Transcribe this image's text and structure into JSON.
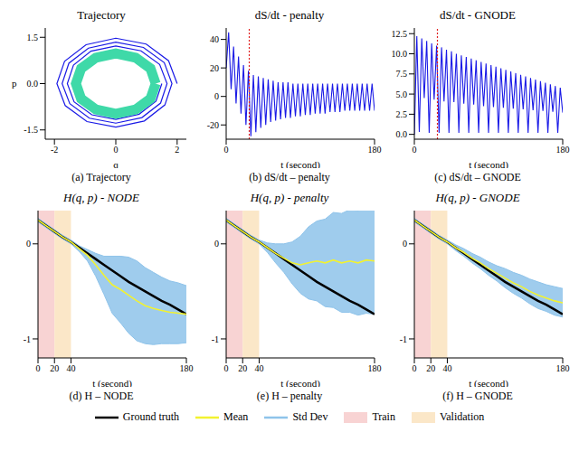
{
  "chart_data": [
    {
      "type": "line",
      "title": "Trajectory",
      "caption": "(a) Trajectory",
      "x_label": "q",
      "y_label": "p",
      "xlim": [
        -2.3,
        2.3
      ],
      "xticks": [
        -2,
        0,
        2
      ],
      "ylim": [
        -1.8,
        1.8
      ],
      "yticks": [
        -1.5,
        {
          "value": 0,
          "label": "0.0"
        },
        1.5
      ],
      "series": [
        {
          "color": "#1a1ae6",
          "x": [
            2.0,
            1.72,
            0.99,
            0.0,
            -0.97,
            -1.67,
            -1.92,
            -1.65,
            -0.94,
            0.0,
            0.93,
            1.6,
            1.83,
            1.58,
            0.9,
            0.0,
            -0.89,
            -1.53,
            -1.75,
            -1.5,
            -0.86,
            0.0,
            0.85,
            1.46,
            1.67,
            1.43,
            0.82,
            0.0,
            -0.81,
            -1.38,
            -1.58,
            -1.36,
            -0.78,
            0.0,
            0.76,
            1.31,
            1.5
          ],
          "y": [
            0.0,
            0.74,
            1.28,
            1.47,
            1.26,
            0.72,
            0.0,
            -0.71,
            -1.23,
            -1.41,
            -1.21,
            -0.69,
            0.0,
            0.68,
            1.17,
            1.34,
            1.15,
            0.66,
            0.0,
            -0.65,
            -1.12,
            -1.28,
            -1.1,
            -0.63,
            0.0,
            0.62,
            1.06,
            1.22,
            1.05,
            0.6,
            0.0,
            -0.59,
            -1.01,
            -1.16,
            -0.99,
            -0.57,
            0.0
          ]
        },
        {
          "color": "#3fd9a8",
          "x": [
            1.3,
            1.13,
            0.65,
            0.0,
            -0.65,
            -1.13,
            -1.3,
            -1.13,
            -0.65,
            0.0,
            0.65,
            1.13,
            1.3
          ],
          "y": [
            0.0,
            0.49,
            0.84,
            0.98,
            0.84,
            0.49,
            0.0,
            -0.49,
            -0.84,
            -0.98,
            -0.84,
            -0.49,
            0.0
          ]
        }
      ]
    },
    {
      "type": "line",
      "title": "dS/dt - penalty",
      "caption": "(b) dS/dt – penalty",
      "x_label": "t (second)",
      "xlim": [
        0,
        180
      ],
      "xticks": [
        0,
        180
      ],
      "ylim": [
        -30,
        48
      ],
      "yticks": [
        -20,
        0,
        20,
        40
      ],
      "vline": 28,
      "x": [
        0,
        3,
        6,
        9,
        12,
        15,
        18,
        21,
        24,
        27,
        30,
        33,
        36,
        39,
        42,
        45,
        48,
        51,
        54,
        57,
        60,
        63,
        66,
        69,
        72,
        75,
        78,
        81,
        84,
        87,
        90,
        93,
        96,
        99,
        102,
        105,
        108,
        111,
        114,
        117,
        120,
        123,
        126,
        129,
        132,
        135,
        138,
        141,
        144,
        147,
        150,
        153,
        156,
        159,
        162,
        165,
        168,
        171,
        174,
        177,
        180
      ],
      "series": [
        {
          "color": "#1a1ae6",
          "values": [
            20,
            45,
            5,
            35,
            -5,
            28,
            -12,
            22,
            -20,
            18,
            -28,
            15,
            -25,
            14,
            -22,
            13,
            -20,
            12,
            -18,
            11,
            -17,
            10,
            -16,
            10,
            -15,
            10,
            -15,
            9,
            -14,
            9,
            -14,
            9,
            -13,
            9,
            -13,
            9,
            -12,
            9,
            -12,
            9,
            -12,
            9,
            -11,
            9,
            -11,
            9,
            -11,
            9,
            -10,
            9,
            -10,
            9,
            -10,
            9,
            -10,
            9,
            -10,
            9,
            -10,
            9,
            -10
          ]
        }
      ]
    },
    {
      "type": "line",
      "title": "dS/dt - GNODE",
      "caption": "(c) dS/dt – GNODE",
      "x_label": "t (second)",
      "xlim": [
        0,
        180
      ],
      "xticks": [
        0,
        180
      ],
      "ylim": [
        -0.6,
        13.2
      ],
      "yticks": [
        {
          "value": 0,
          "label": "0.0"
        },
        2.5,
        {
          "value": 5,
          "label": "5.0"
        },
        7.5,
        {
          "value": 10,
          "label": "10.0"
        },
        12.5
      ],
      "vline": 28,
      "x": [
        0,
        3,
        6,
        9,
        12,
        15,
        18,
        21,
        24,
        27,
        30,
        33,
        36,
        39,
        42,
        45,
        48,
        51,
        54,
        57,
        60,
        63,
        66,
        69,
        72,
        75,
        78,
        81,
        84,
        87,
        90,
        93,
        96,
        99,
        102,
        105,
        108,
        111,
        114,
        117,
        120,
        123,
        126,
        129,
        132,
        135,
        138,
        141,
        144,
        147,
        150,
        153,
        156,
        159,
        162,
        165,
        168,
        171,
        174,
        177,
        180
      ],
      "series": [
        {
          "color": "#1a1ae6",
          "values": [
            0,
            12.2,
            0.3,
            11.9,
            4.5,
            11.6,
            0.2,
            11.3,
            4.3,
            11.0,
            0.2,
            10.8,
            4.1,
            10.5,
            0.2,
            10.3,
            4.0,
            10.0,
            0.2,
            9.8,
            3.8,
            9.6,
            0.2,
            9.4,
            3.7,
            9.2,
            0.2,
            9.0,
            3.5,
            8.8,
            0.2,
            8.6,
            3.4,
            8.4,
            0.2,
            8.2,
            3.3,
            8.0,
            0.2,
            7.8,
            3.2,
            7.6,
            0.2,
            7.4,
            3.1,
            7.2,
            0.2,
            7.0,
            3.0,
            6.8,
            0.2,
            6.6,
            2.9,
            6.4,
            0.2,
            6.2,
            2.8,
            6.0,
            0.2,
            5.8,
            2.7
          ]
        }
      ]
    },
    {
      "type": "line",
      "title": "H(q, p) - NODE",
      "caption": "(d) H – NODE",
      "x_label": "t (second)",
      "legend": "bottom",
      "xlim": [
        0,
        180
      ],
      "xticks": [
        0,
        20,
        40,
        180
      ],
      "ylim": [
        -1.2,
        0.35
      ],
      "yticks": [
        -1,
        0
      ],
      "regions": [
        {
          "name": "Train",
          "from": 0,
          "to": 20,
          "color": "#f8d3d3"
        },
        {
          "name": "Validation",
          "from": 20,
          "to": 40,
          "color": "#fbe7c8"
        }
      ],
      "x": [
        0,
        10,
        20,
        30,
        40,
        50,
        60,
        70,
        80,
        90,
        100,
        110,
        120,
        130,
        140,
        150,
        160,
        170,
        180
      ],
      "series": [
        {
          "name": "Ground truth",
          "color": "#000000",
          "values": [
            0.25,
            0.19,
            0.13,
            0.07,
            0.02,
            -0.04,
            -0.1,
            -0.16,
            -0.22,
            -0.28,
            -0.34,
            -0.4,
            -0.45,
            -0.5,
            -0.55,
            -0.6,
            -0.64,
            -0.69,
            -0.74
          ]
        },
        {
          "name": "Mean",
          "color": "#f2f230",
          "values": [
            0.25,
            0.19,
            0.13,
            0.07,
            0.02,
            -0.05,
            -0.12,
            -0.22,
            -0.33,
            -0.43,
            -0.48,
            -0.54,
            -0.6,
            -0.65,
            -0.68,
            -0.7,
            -0.72,
            -0.73,
            -0.74
          ]
        },
        {
          "name": "Std Dev",
          "color": "#8ec3ea",
          "lower": [
            0.23,
            0.17,
            0.11,
            0.05,
            0.0,
            -0.08,
            -0.18,
            -0.34,
            -0.53,
            -0.73,
            -0.83,
            -0.94,
            -1.02,
            -1.05,
            -1.06,
            -1.05,
            -1.05,
            -1.05,
            -1.04
          ],
          "upper": [
            0.27,
            0.21,
            0.15,
            0.09,
            0.04,
            -0.02,
            -0.06,
            -0.1,
            -0.13,
            -0.13,
            -0.13,
            -0.14,
            -0.18,
            -0.25,
            -0.3,
            -0.35,
            -0.39,
            -0.41,
            -0.44
          ]
        }
      ]
    },
    {
      "type": "line",
      "title": "H(q, p) - penalty",
      "caption": "(e) H – penalty",
      "x_label": "t (second)",
      "xlim": [
        0,
        180
      ],
      "xticks": [
        0,
        20,
        40,
        180
      ],
      "ylim": [
        -1.2,
        0.35
      ],
      "yticks": [
        -1,
        0
      ],
      "regions": [
        {
          "name": "Train",
          "from": 0,
          "to": 20,
          "color": "#f8d3d3"
        },
        {
          "name": "Validation",
          "from": 20,
          "to": 40,
          "color": "#fbe7c8"
        }
      ],
      "x": [
        0,
        10,
        20,
        30,
        40,
        50,
        60,
        70,
        80,
        90,
        100,
        110,
        120,
        130,
        140,
        150,
        160,
        170,
        180
      ],
      "series": [
        {
          "name": "Ground truth",
          "color": "#000000",
          "values": [
            0.25,
            0.19,
            0.13,
            0.07,
            0.02,
            -0.04,
            -0.1,
            -0.16,
            -0.22,
            -0.28,
            -0.34,
            -0.4,
            -0.45,
            -0.5,
            -0.55,
            -0.6,
            -0.64,
            -0.69,
            -0.74
          ]
        },
        {
          "name": "Mean",
          "color": "#f2f230",
          "values": [
            0.25,
            0.19,
            0.13,
            0.07,
            0.02,
            -0.04,
            -0.1,
            -0.15,
            -0.2,
            -0.22,
            -0.2,
            -0.18,
            -0.2,
            -0.17,
            -0.2,
            -0.18,
            -0.2,
            -0.17,
            -0.18
          ]
        },
        {
          "name": "Std Dev",
          "color": "#8ec3ea",
          "lower": [
            0.23,
            0.17,
            0.11,
            0.05,
            0.0,
            -0.09,
            -0.2,
            -0.3,
            -0.42,
            -0.52,
            -0.58,
            -0.6,
            -0.66,
            -0.67,
            -0.72,
            -0.72,
            -0.75,
            -0.73,
            -0.74
          ],
          "upper": [
            0.27,
            0.21,
            0.15,
            0.09,
            0.04,
            0.01,
            0.0,
            0.0,
            0.02,
            0.08,
            0.18,
            0.24,
            0.26,
            0.33,
            0.32,
            0.36,
            0.35,
            0.39,
            0.38
          ]
        }
      ]
    },
    {
      "type": "line",
      "title": "H(q, p) - GNODE",
      "caption": "(f) H – GNODE",
      "x_label": "t (second)",
      "xlim": [
        0,
        180
      ],
      "xticks": [
        0,
        20,
        40,
        180
      ],
      "ylim": [
        -1.2,
        0.35
      ],
      "yticks": [
        -1,
        0
      ],
      "regions": [
        {
          "name": "Train",
          "from": 0,
          "to": 20,
          "color": "#f8d3d3"
        },
        {
          "name": "Validation",
          "from": 20,
          "to": 40,
          "color": "#fbe7c8"
        }
      ],
      "x": [
        0,
        10,
        20,
        30,
        40,
        50,
        60,
        70,
        80,
        90,
        100,
        110,
        120,
        130,
        140,
        150,
        160,
        170,
        180
      ],
      "series": [
        {
          "name": "Ground truth",
          "color": "#000000",
          "values": [
            0.25,
            0.19,
            0.13,
            0.07,
            0.02,
            -0.04,
            -0.1,
            -0.16,
            -0.22,
            -0.28,
            -0.34,
            -0.4,
            -0.45,
            -0.5,
            -0.55,
            -0.6,
            -0.64,
            -0.69,
            -0.74
          ]
        },
        {
          "name": "Mean",
          "color": "#f2f230",
          "values": [
            0.25,
            0.19,
            0.13,
            0.07,
            0.02,
            -0.04,
            -0.09,
            -0.15,
            -0.2,
            -0.26,
            -0.31,
            -0.36,
            -0.41,
            -0.45,
            -0.5,
            -0.54,
            -0.57,
            -0.6,
            -0.62
          ]
        },
        {
          "name": "Std Dev",
          "color": "#8ec3ea",
          "lower": [
            0.23,
            0.17,
            0.11,
            0.05,
            0.0,
            -0.07,
            -0.13,
            -0.2,
            -0.26,
            -0.33,
            -0.39,
            -0.46,
            -0.52,
            -0.57,
            -0.63,
            -0.68,
            -0.71,
            -0.75,
            -0.77
          ],
          "upper": [
            0.27,
            0.21,
            0.15,
            0.09,
            0.04,
            -0.01,
            -0.05,
            -0.1,
            -0.14,
            -0.19,
            -0.23,
            -0.26,
            -0.3,
            -0.33,
            -0.37,
            -0.4,
            -0.43,
            -0.45,
            -0.47
          ]
        }
      ]
    }
  ]
}
